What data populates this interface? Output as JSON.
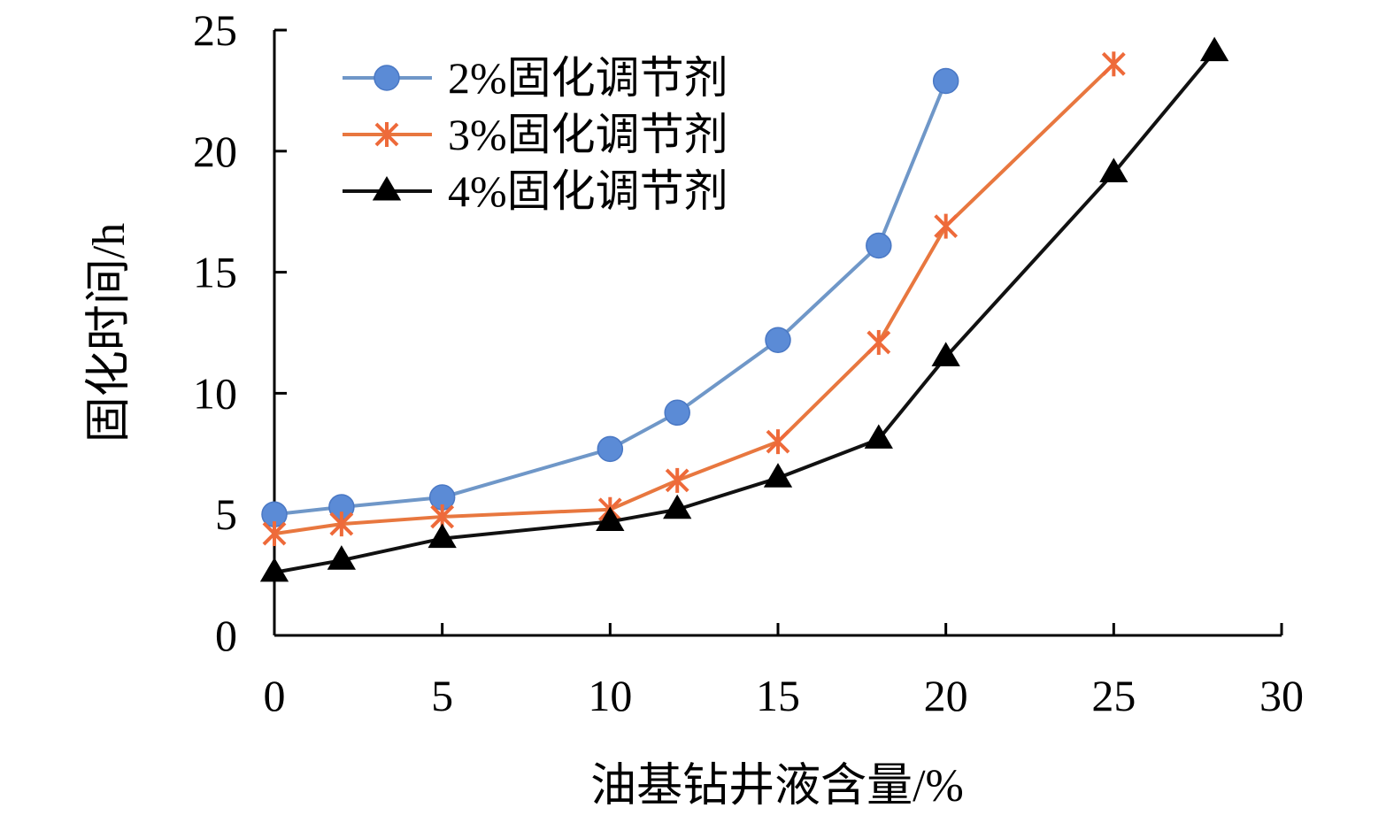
{
  "chart_data": {
    "type": "line",
    "xlabel": "油基钻井液含量/%",
    "ylabel": "固化时间/h",
    "xlim": [
      0,
      30
    ],
    "ylim": [
      0,
      25
    ],
    "x_ticks": [
      0,
      5,
      10,
      15,
      20,
      25,
      30
    ],
    "y_ticks": [
      0,
      5,
      10,
      15,
      20,
      25
    ],
    "grid": false,
    "legend_position": "top-left",
    "series": [
      {
        "name": "2%固化调节剂",
        "color": "#5b8bd6",
        "line_color": "#6f97c8",
        "marker": "circle",
        "x": [
          0,
          2,
          5,
          10,
          12,
          15,
          18,
          20
        ],
        "y": [
          5.0,
          5.3,
          5.7,
          7.7,
          9.2,
          12.2,
          16.1,
          22.9
        ]
      },
      {
        "name": "3%固化调节剂",
        "color": "#ee6a3a",
        "line_color": "#e8773f",
        "marker": "x-star",
        "x": [
          0,
          2,
          5,
          10,
          12,
          15,
          18,
          20,
          25
        ],
        "y": [
          4.2,
          4.6,
          4.9,
          5.2,
          6.4,
          8.0,
          12.1,
          16.9,
          23.6
        ]
      },
      {
        "name": "4%固化调节剂",
        "color": "#000000",
        "line_color": "#111111",
        "marker": "triangle",
        "x": [
          0,
          2,
          5,
          10,
          12,
          15,
          18,
          20,
          25,
          28
        ],
        "y": [
          2.6,
          3.1,
          4.0,
          4.7,
          5.2,
          6.5,
          8.1,
          11.5,
          19.1,
          24.1
        ]
      }
    ]
  }
}
